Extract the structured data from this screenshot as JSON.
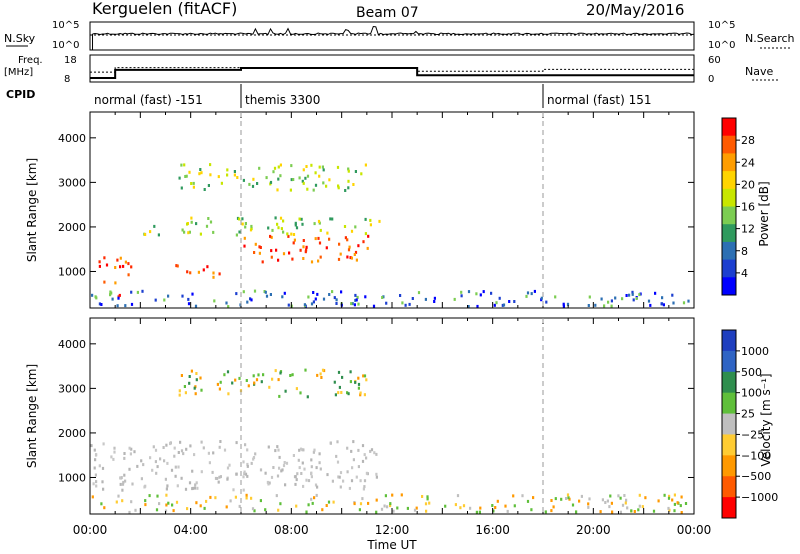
{
  "header": {
    "station": "Kerguelen (fitACF)",
    "beam": "Beam 07",
    "date": "20/May/2016"
  },
  "params": {
    "nsky_label": "N.Sky",
    "nsearch_label": "N.Search",
    "freq_label": "Freq.",
    "freq_unit": "[MHz]",
    "nave_label": "Nave",
    "cpid_label": "CPID",
    "nsky_ticks": [
      "10^5",
      "10^0"
    ],
    "nsearch_ticks": [
      "10^5",
      "10^0"
    ],
    "freq_ticks": [
      "18",
      "8"
    ],
    "nave_ticks": [
      "60",
      "0"
    ],
    "cpid_segments": [
      {
        "start_h": 0,
        "label": "normal (fast) -151"
      },
      {
        "start_h": 6,
        "label": "themis 3300"
      },
      {
        "start_h": 18,
        "label": "normal (fast) 151"
      }
    ],
    "freq_steps": [
      [
        0,
        9.5
      ],
      [
        1,
        12.5
      ],
      [
        6,
        13.2
      ],
      [
        13,
        10.5
      ],
      [
        24,
        10.5
      ]
    ],
    "nave_steps": [
      [
        0,
        22
      ],
      [
        1,
        32
      ],
      [
        6,
        32
      ],
      [
        13,
        24
      ],
      [
        18,
        28
      ],
      [
        24,
        29
      ]
    ]
  },
  "chart_data": [
    {
      "type": "heatmap",
      "name": "power",
      "ylabel": "Slant Range [km]",
      "yticks": [
        1000,
        2000,
        3000,
        4000
      ],
      "ylim": [
        180,
        4580
      ],
      "xlim_hours": [
        0,
        24
      ],
      "colorbar_label": "Power [dB]",
      "colorbar_ticks": [
        "28",
        "24",
        "20",
        "16",
        "12",
        "8",
        "4"
      ],
      "colorbar_colors": [
        "#ff0000",
        "#ff5a00",
        "#ff9d00",
        "#ffd400",
        "#c8e600",
        "#7ccd52",
        "#2f9a5e",
        "#2c6fb3",
        "#1c3fd0",
        "#0000ff"
      ],
      "regions": [
        {
          "t": [
            0.3,
            1.8
          ],
          "r": [
            700,
            1300
          ],
          "level": "high"
        },
        {
          "t": [
            1.0,
            1.5
          ],
          "r": [
            400,
            600
          ],
          "level": "high"
        },
        {
          "t": [
            2.8,
            3.5
          ],
          "r": [
            1100,
            1300
          ],
          "level": "high"
        },
        {
          "t": [
            3.8,
            4.8
          ],
          "r": [
            900,
            1200
          ],
          "level": "high"
        },
        {
          "t": [
            4.8,
            5.6
          ],
          "r": [
            850,
            1050
          ],
          "level": "high"
        },
        {
          "t": [
            6.0,
            11.2
          ],
          "r": [
            1200,
            1800
          ],
          "level": "high"
        },
        {
          "t": [
            3.5,
            11.0
          ],
          "r": [
            2800,
            3400
          ],
          "level": "mid"
        },
        {
          "t": [
            2.0,
            11.5
          ],
          "r": [
            1800,
            2200
          ],
          "level": "mid"
        },
        {
          "t": [
            0.0,
            24.0
          ],
          "r": [
            200,
            550
          ],
          "level": "low"
        }
      ]
    },
    {
      "type": "heatmap",
      "name": "velocity",
      "xlabel": "Time UT",
      "ylabel": "Slant Range [km]",
      "xticks": [
        "00:00",
        "04:00",
        "08:00",
        "12:00",
        "16:00",
        "20:00",
        "00:00"
      ],
      "yticks": [
        1000,
        2000,
        3000,
        4000
      ],
      "ylim": [
        180,
        4580
      ],
      "xlim_hours": [
        0,
        24
      ],
      "colorbar_label": "Velocity [m s⁻¹]",
      "colorbar_ticks": [
        "1000",
        "500",
        "100",
        "25",
        "−25",
        "−100",
        "−500",
        "−1000"
      ],
      "colorbar_colors": [
        "#1f3fbf",
        "#2f64c4",
        "#2f8e4e",
        "#5fbf3a",
        "#bfbfbf",
        "#ffcc33",
        "#ff9900",
        "#ff5a00",
        "#ff0000"
      ],
      "regions": [
        {
          "t": [
            0.0,
            11.5
          ],
          "r": [
            700,
            1800
          ],
          "level": "near-zero"
        },
        {
          "t": [
            3.5,
            11.0
          ],
          "r": [
            2800,
            3400
          ],
          "level": "positive"
        },
        {
          "t": [
            0.0,
            24.0
          ],
          "r": [
            200,
            600
          ],
          "level": "negative"
        }
      ]
    }
  ]
}
